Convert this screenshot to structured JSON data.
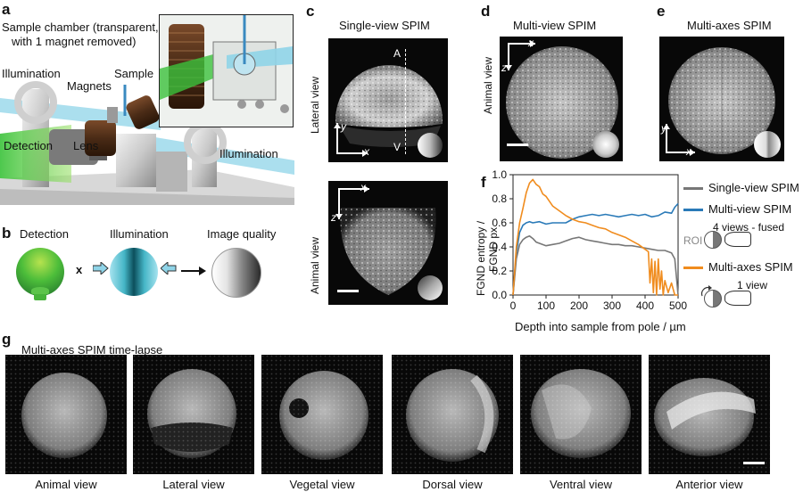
{
  "panels": {
    "a": {
      "letter": "a",
      "chamber_caption_line1": "Sample chamber (transparent,",
      "chamber_caption_line2": "with 1 magnet removed)",
      "illumination_left": "Illumination",
      "magnets": "Magnets",
      "sample": "Sample",
      "detection": "Detection",
      "lens": "Lens",
      "illumination_right": "Illumination"
    },
    "b": {
      "letter": "b",
      "detection": "Detection",
      "times": "x",
      "illumination": "Illumination",
      "image_quality": "Image quality"
    },
    "c": {
      "letter": "c",
      "title": "Single-view SPIM",
      "lateral_view": "Lateral view",
      "animal_view": "Animal view",
      "axis_A": "A",
      "axis_V": "V",
      "axis_y": "y",
      "axis_x": "x",
      "axis_z": "z",
      "axis_x2": "x"
    },
    "d": {
      "letter": "d",
      "title": "Multi-view SPIM",
      "animal_view": "Animal view",
      "axis_x": "x",
      "axis_z": "z"
    },
    "e": {
      "letter": "e",
      "title": "Multi-axes SPIM",
      "axis_y": "y",
      "axis_x": "x"
    },
    "f": {
      "letter": "f",
      "roi": "ROI",
      "four_views": "4 views - fused",
      "one_view": "1 view"
    },
    "g": {
      "letter": "g",
      "title": "Multi-axes SPIM time-lapse",
      "views": [
        "Animal view",
        "Lateral view",
        "Vegetal view",
        "Dorsal view",
        "Ventral view",
        "Anterior view"
      ]
    }
  },
  "chart_data": {
    "type": "line",
    "xlabel": "Depth into sample from pole / µm",
    "ylabel_line1": "FGND entropy /",
    "ylabel_line2": "FGND px",
    "xlim": [
      0,
      500
    ],
    "ylim": [
      0,
      1.0
    ],
    "xticks": [
      0,
      100,
      200,
      300,
      400,
      500
    ],
    "yticks": [
      0.0,
      0.2,
      0.4,
      0.6,
      0.8,
      1.0
    ],
    "ytick_labels": [
      "0.0",
      "0.2",
      "0.4",
      "0.6",
      "0.8",
      "1.0"
    ],
    "series": [
      {
        "name": "Single-view SPIM",
        "color": "#777777",
        "x": [
          0,
          10,
          20,
          30,
          40,
          50,
          60,
          70,
          80,
          100,
          120,
          140,
          160,
          180,
          200,
          220,
          240,
          260,
          280,
          300,
          320,
          340,
          360,
          380,
          400,
          420,
          440,
          460,
          480,
          490,
          500
        ],
        "y": [
          0.0,
          0.3,
          0.42,
          0.46,
          0.48,
          0.49,
          0.47,
          0.44,
          0.43,
          0.41,
          0.42,
          0.43,
          0.45,
          0.47,
          0.48,
          0.46,
          0.45,
          0.44,
          0.43,
          0.42,
          0.42,
          0.41,
          0.41,
          0.4,
          0.39,
          0.38,
          0.37,
          0.37,
          0.35,
          0.3,
          0.0
        ]
      },
      {
        "name": "Multi-view SPIM",
        "color": "#2a7ab8",
        "x": [
          0,
          10,
          20,
          30,
          40,
          50,
          60,
          80,
          100,
          120,
          140,
          160,
          180,
          200,
          220,
          240,
          260,
          280,
          300,
          320,
          340,
          360,
          380,
          400,
          420,
          440,
          460,
          480,
          490,
          500
        ],
        "y": [
          0.0,
          0.35,
          0.52,
          0.58,
          0.6,
          0.61,
          0.6,
          0.61,
          0.59,
          0.6,
          0.6,
          0.6,
          0.63,
          0.65,
          0.66,
          0.67,
          0.66,
          0.67,
          0.66,
          0.65,
          0.66,
          0.67,
          0.66,
          0.67,
          0.65,
          0.66,
          0.69,
          0.68,
          0.73,
          0.76
        ]
      },
      {
        "name": "Multi-axes SPIM",
        "color": "#f08c1e",
        "x": [
          0,
          10,
          20,
          30,
          40,
          50,
          60,
          70,
          80,
          90,
          100,
          110,
          120,
          140,
          160,
          180,
          200,
          220,
          240,
          260,
          280,
          300,
          320,
          340,
          360,
          380,
          400,
          410,
          415,
          420,
          425,
          430,
          435,
          440,
          445,
          450,
          455,
          460,
          470,
          480,
          490,
          500
        ],
        "y": [
          0.0,
          0.4,
          0.6,
          0.72,
          0.85,
          0.93,
          0.96,
          0.92,
          0.9,
          0.84,
          0.82,
          0.78,
          0.74,
          0.7,
          0.66,
          0.63,
          0.61,
          0.6,
          0.58,
          0.56,
          0.55,
          0.52,
          0.5,
          0.48,
          0.45,
          0.42,
          0.38,
          0.36,
          0.1,
          0.3,
          0.02,
          0.28,
          0.0,
          0.3,
          0.05,
          0.2,
          0.0,
          0.12,
          0.02,
          0.1,
          0.0,
          0.0
        ]
      }
    ]
  }
}
